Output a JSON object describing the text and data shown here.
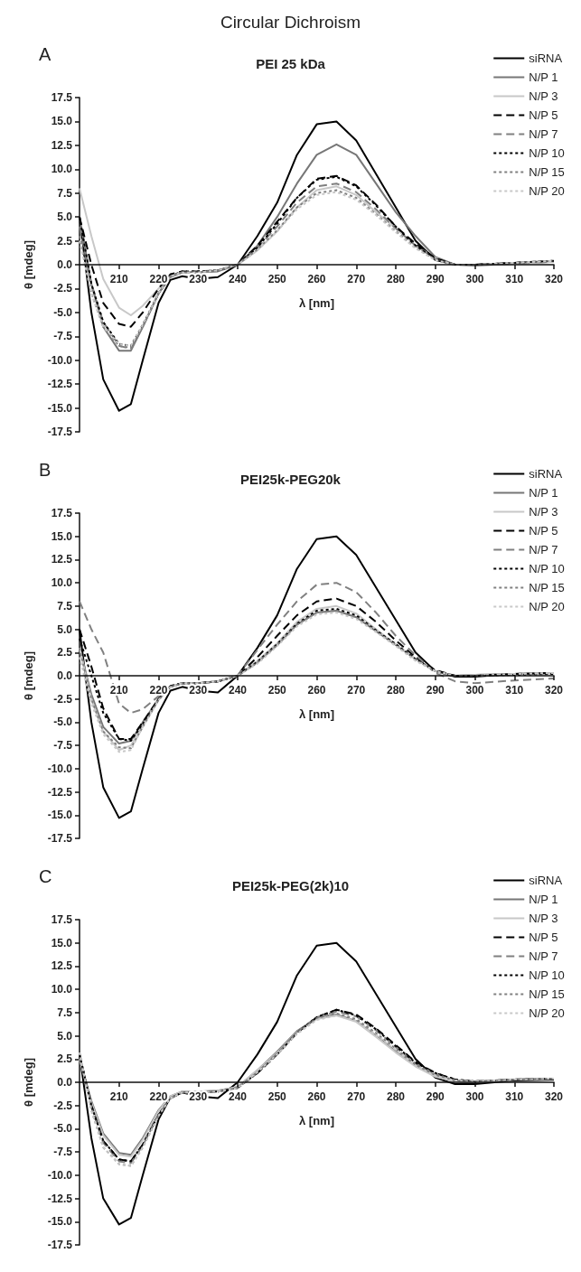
{
  "chart_data": [
    {
      "type": "line",
      "subtitle": "Circular Dichroism",
      "title": "PEI 25 kDa",
      "annotations": [
        "A"
      ],
      "xlabel": "λ [nm]",
      "ylabel": "θ [mdeg]",
      "legend": "top right",
      "grid": false,
      "xlim": [
        200,
        320
      ],
      "xticks": [
        210,
        220,
        230,
        240,
        250,
        260,
        270,
        280,
        290,
        300,
        310,
        320
      ],
      "ylim": [
        -17.5,
        17.5
      ],
      "yticks": [
        -17.5,
        {
          "value": -15,
          "label": "-15.0"
        },
        -12.5,
        {
          "value": -10,
          "label": "-10.0"
        },
        -7.5,
        {
          "value": -5,
          "label": "-5.0"
        },
        -2.5,
        {
          "value": 0,
          "label": "0.0"
        },
        2.5,
        {
          "value": 5,
          "label": "5.0"
        },
        7.5,
        {
          "value": 10,
          "label": "10.0"
        },
        12.5,
        {
          "value": 15,
          "label": "15.0"
        },
        17.5
      ],
      "x": [
        200,
        203,
        206,
        210,
        213,
        216,
        220,
        223,
        226,
        230,
        235,
        240,
        245,
        250,
        255,
        260,
        265,
        270,
        275,
        280,
        285,
        290,
        295,
        300,
        310,
        320
      ],
      "series": [
        {
          "name": "siRNA",
          "color": "#000000",
          "line_style": "solid",
          "values": [
            5,
            -5,
            -12,
            -15.3,
            -14.6,
            -10,
            -4,
            -1.6,
            -1.2,
            -1.5,
            -1.3,
            0,
            3,
            6.5,
            11.5,
            14.7,
            15,
            13,
            9.5,
            6,
            2.5,
            0.5,
            0,
            0,
            0.2,
            0.3
          ]
        },
        {
          "name": "N/P 1",
          "color": "#777777",
          "line_style": "solid",
          "values": [
            5,
            -2,
            -6.5,
            -9,
            -9,
            -6.5,
            -3,
            -1.3,
            -0.8,
            -0.8,
            -0.7,
            0,
            2,
            5,
            8.5,
            11.5,
            12.6,
            11.5,
            8.5,
            5.5,
            3,
            0.8,
            0,
            -0.1,
            0.1,
            0.3
          ]
        },
        {
          "name": "N/P 3",
          "color": "#c8c8c8",
          "line_style": "solid",
          "values": [
            8,
            3,
            -1.5,
            -4.5,
            -5.3,
            -4.3,
            -2.5,
            -1.2,
            -0.8,
            -0.8,
            -0.6,
            0,
            1.5,
            3.5,
            6,
            7.8,
            8.2,
            7.3,
            5.5,
            3.8,
            2,
            0.7,
            0,
            0,
            0.1,
            0.3
          ]
        },
        {
          "name": "N/P 5",
          "color": "#000000",
          "line_style": "dashed",
          "values": [
            5,
            0,
            -4,
            -6.2,
            -6.5,
            -5,
            -2.5,
            -1,
            -0.7,
            -0.7,
            -0.6,
            0,
            2,
            4.5,
            7,
            9,
            9.3,
            8.3,
            6.3,
            4,
            2.2,
            0.7,
            0,
            0,
            0.2,
            0.4
          ]
        },
        {
          "name": "N/P 7",
          "color": "#808080",
          "line_style": "dashed",
          "values": [
            4,
            -2,
            -6,
            -8.5,
            -8.8,
            -6.5,
            -3,
            -1.2,
            -0.8,
            -0.8,
            -0.6,
            0,
            1.8,
            4,
            6.5,
            8.2,
            8.5,
            7.6,
            5.8,
            3.8,
            2,
            0.6,
            0,
            0,
            0.2,
            0.4
          ]
        },
        {
          "name": "N/P 10",
          "color": "#000000",
          "line_style": "dotted",
          "values": [
            5,
            -2,
            -6,
            -8.3,
            -8.5,
            -6.3,
            -3,
            -1.2,
            -0.7,
            -0.7,
            -0.6,
            0,
            1.8,
            4.3,
            7,
            8.9,
            9.2,
            8.2,
            6.2,
            4,
            2,
            0.6,
            0,
            0,
            0.2,
            0.4
          ]
        },
        {
          "name": "N/P 15",
          "color": "#808080",
          "line_style": "dotted",
          "values": [
            3,
            -3,
            -6.5,
            -8.5,
            -8.7,
            -6.5,
            -3,
            -1.2,
            -0.8,
            -0.8,
            -0.6,
            0,
            1.6,
            3.6,
            6,
            7.5,
            7.8,
            7,
            5.3,
            3.5,
            1.8,
            0.5,
            0,
            0,
            0.2,
            0.4
          ]
        },
        {
          "name": "N/P 20",
          "color": "#c8c8c8",
          "line_style": "dotted",
          "values": [
            2.5,
            -3,
            -6.5,
            -8.3,
            -8.5,
            -6.3,
            -3,
            -1.2,
            -0.8,
            -0.8,
            -0.6,
            0,
            1.5,
            3.5,
            5.8,
            7.3,
            7.6,
            6.8,
            5.2,
            3.4,
            1.7,
            0.5,
            0,
            0,
            0.2,
            0.4
          ]
        }
      ]
    },
    {
      "type": "line",
      "title": "PEI25k-PEG20k",
      "annotations": [
        "B"
      ],
      "xlabel": "λ [nm]",
      "ylabel": "θ [mdeg]",
      "legend": "top right",
      "grid": false,
      "xlim": [
        200,
        320
      ],
      "xticks": [
        210,
        220,
        230,
        240,
        250,
        260,
        270,
        280,
        290,
        300,
        310,
        320
      ],
      "ylim": [
        -17.5,
        17.5
      ],
      "yticks": [
        -17.5,
        {
          "value": -15,
          "label": "-15.0"
        },
        -12.5,
        {
          "value": -10,
          "label": "-10.0"
        },
        -7.5,
        {
          "value": -5,
          "label": "-5.0"
        },
        -2.5,
        {
          "value": 0,
          "label": "0.0"
        },
        2.5,
        {
          "value": 5,
          "label": "5.0"
        },
        7.5,
        {
          "value": 10,
          "label": "10.0"
        },
        12.5,
        {
          "value": 15,
          "label": "15.0"
        },
        17.5
      ],
      "x": [
        200,
        203,
        206,
        210,
        213,
        216,
        220,
        223,
        226,
        230,
        235,
        240,
        245,
        250,
        255,
        260,
        265,
        270,
        275,
        280,
        285,
        290,
        295,
        300,
        310,
        320
      ],
      "series": [
        {
          "name": "siRNA",
          "color": "#000000",
          "line_style": "solid",
          "values": [
            5,
            -5,
            -12,
            -15.3,
            -14.6,
            -10,
            -4,
            -1.6,
            -1.2,
            -1.6,
            -1.8,
            0,
            3,
            6.5,
            11.5,
            14.7,
            15,
            13,
            9.5,
            6,
            2.5,
            0.5,
            -0.1,
            -0.1,
            0.2,
            0.3
          ]
        },
        {
          "name": "N/P 1",
          "color": "#777777",
          "line_style": "solid",
          "values": [
            3,
            -2,
            -5.5,
            -7.3,
            -7,
            -5,
            -2.5,
            -1.2,
            -0.8,
            -0.8,
            -0.6,
            0,
            1.5,
            3.3,
            5.5,
            6.8,
            7,
            6.3,
            4.8,
            3.3,
            1.8,
            0.5,
            0,
            0.1,
            0.2,
            0.3
          ]
        },
        {
          "name": "N/P 3",
          "color": "#c8c8c8",
          "line_style": "solid",
          "values": [
            3,
            -2.5,
            -6,
            -8,
            -7.5,
            -5.3,
            -2.5,
            -1.2,
            -0.8,
            -0.8,
            -0.6,
            0,
            1.6,
            3.5,
            5.8,
            7.2,
            7.5,
            6.7,
            5,
            3.4,
            1.8,
            0.5,
            0,
            0.1,
            0.2,
            0.3
          ]
        },
        {
          "name": "N/P 5",
          "color": "#000000",
          "line_style": "dashed",
          "values": [
            5,
            1,
            -3.5,
            -6.8,
            -6.8,
            -5,
            -2.5,
            -1.1,
            -0.8,
            -0.8,
            -0.6,
            0,
            2,
            4.3,
            6.5,
            8,
            8.3,
            7.5,
            5.8,
            3.8,
            2,
            0.6,
            0,
            0,
            0.2,
            0.3
          ]
        },
        {
          "name": "N/P 7",
          "color": "#808080",
          "line_style": "dashed",
          "values": [
            8,
            5,
            2.5,
            -3,
            -4,
            -3.6,
            -2.2,
            -1.2,
            -0.8,
            -0.8,
            -0.6,
            0,
            2.8,
            5.5,
            8,
            9.8,
            10,
            9,
            6.8,
            4.3,
            2.2,
            0.3,
            -0.6,
            -0.8,
            -0.5,
            -0.3
          ]
        },
        {
          "name": "N/P 10",
          "color": "#000000",
          "line_style": "dotted",
          "values": [
            4,
            0,
            -4,
            -6.8,
            -7,
            -5.2,
            -2.5,
            -1.1,
            -0.8,
            -0.8,
            -0.6,
            0,
            1.5,
            3.4,
            5.6,
            7,
            7.2,
            6.5,
            4.9,
            3.4,
            1.8,
            0.5,
            0,
            0,
            0.1,
            0.2
          ]
        },
        {
          "name": "N/P 15",
          "color": "#808080",
          "line_style": "dotted",
          "values": [
            3,
            -2.5,
            -6,
            -7.7,
            -7.8,
            -5.5,
            -2.6,
            -1.2,
            -0.8,
            -0.8,
            -0.6,
            0,
            1.4,
            3.3,
            5.5,
            6.8,
            7,
            6.3,
            4.8,
            3.3,
            1.7,
            0.5,
            0,
            0,
            0.2,
            0.3
          ]
        },
        {
          "name": "N/P 20",
          "color": "#c8c8c8",
          "line_style": "dotted",
          "values": [
            2,
            -3,
            -6.3,
            -8.2,
            -8,
            -5.5,
            -2.6,
            -1.2,
            -0.8,
            -0.8,
            -0.6,
            0,
            1.3,
            3.2,
            5.3,
            6.6,
            6.8,
            6.1,
            4.7,
            3.2,
            1.6,
            0.5,
            0,
            0,
            0.2,
            0.3
          ]
        }
      ]
    },
    {
      "type": "line",
      "title": "PEI25k-PEG(2k)10",
      "annotations": [
        "C"
      ],
      "xlabel": "λ [nm]",
      "ylabel": "θ [mdeg]",
      "legend": "top right",
      "grid": false,
      "xlim": [
        200,
        320
      ],
      "xticks": [
        210,
        220,
        230,
        240,
        250,
        260,
        270,
        280,
        290,
        300,
        310,
        320
      ],
      "ylim": [
        -17.5,
        17.5
      ],
      "yticks": [
        -17.5,
        {
          "value": -15,
          "label": "-15.0"
        },
        -12.5,
        {
          "value": -10,
          "label": "-10.0"
        },
        -7.5,
        {
          "value": -5,
          "label": "-5.0"
        },
        -2.5,
        {
          "value": 0,
          "label": "0.0"
        },
        2.5,
        {
          "value": 5,
          "label": "5.0"
        },
        7.5,
        {
          "value": 10,
          "label": "10.0"
        },
        12.5,
        {
          "value": 15,
          "label": "15.0"
        },
        17.5
      ],
      "x": [
        200,
        203,
        206,
        210,
        213,
        216,
        220,
        223,
        226,
        230,
        235,
        240,
        245,
        250,
        255,
        260,
        265,
        270,
        275,
        280,
        285,
        290,
        295,
        300,
        310,
        320
      ],
      "series": [
        {
          "name": "siRNA",
          "color": "#000000",
          "line_style": "solid",
          "values": [
            3,
            -6,
            -12.5,
            -15.3,
            -14.6,
            -10,
            -4,
            -1.6,
            -1.1,
            -1.5,
            -1.7,
            0,
            3,
            6.5,
            11.5,
            14.7,
            15,
            13,
            9.5,
            6,
            2.5,
            0.5,
            -0.2,
            -0.2,
            0.2,
            0.3
          ]
        },
        {
          "name": "N/P 1",
          "color": "#777777",
          "line_style": "solid",
          "values": [
            2.5,
            -2,
            -5.5,
            -7.6,
            -7.8,
            -6,
            -3,
            -1.5,
            -1,
            -1,
            -0.9,
            -0.5,
            1.3,
            3.3,
            5.5,
            6.9,
            7.3,
            6.6,
            5,
            3.3,
            1.8,
            0.7,
            0.1,
            0,
            0.3,
            0.4
          ]
        },
        {
          "name": "N/P 3",
          "color": "#c8c8c8",
          "line_style": "solid",
          "values": [
            2.5,
            -2.2,
            -5.7,
            -7.8,
            -8,
            -6.2,
            -3.1,
            -1.5,
            -1,
            -1,
            -0.9,
            -0.5,
            1.3,
            3.2,
            5.4,
            6.8,
            7.2,
            6.5,
            4.9,
            3.2,
            1.7,
            0.6,
            0.1,
            0,
            0.3,
            0.4
          ]
        },
        {
          "name": "N/P 5",
          "color": "#000000",
          "line_style": "dashed",
          "values": [
            3,
            -2.5,
            -6.3,
            -8.3,
            -8.5,
            -6.7,
            -3.5,
            -1.7,
            -1.1,
            -1.1,
            -1,
            -0.6,
            1,
            3,
            5.3,
            7,
            7.8,
            7.3,
            5.8,
            4,
            2.2,
            1,
            0.3,
            0.1,
            0.3,
            0.4
          ]
        },
        {
          "name": "N/P 7",
          "color": "#808080",
          "line_style": "dashed",
          "values": [
            3,
            -2.7,
            -6.5,
            -8.5,
            -8.7,
            -6.8,
            -3.5,
            -1.7,
            -1.1,
            -1.1,
            -1,
            -0.6,
            1.1,
            3.1,
            5.4,
            7,
            7.6,
            7.1,
            5.6,
            3.8,
            2,
            0.9,
            0.2,
            0.1,
            0.3,
            0.4
          ]
        },
        {
          "name": "N/P 10",
          "color": "#000000",
          "line_style": "dotted",
          "values": [
            3,
            -2.5,
            -6.3,
            -8.3,
            -8.5,
            -6.7,
            -3.5,
            -1.7,
            -1.1,
            -1.1,
            -1,
            -0.6,
            1,
            3,
            5.3,
            7,
            7.8,
            7.2,
            5.7,
            3.9,
            2.1,
            1,
            0.3,
            0.1,
            0.3,
            0.4
          ]
        },
        {
          "name": "N/P 15",
          "color": "#808080",
          "line_style": "dotted",
          "values": [
            3.2,
            -3,
            -7,
            -8.8,
            -9,
            -7,
            -3.6,
            -1.7,
            -1.1,
            -1.1,
            -1,
            -0.6,
            1.1,
            3.1,
            5.3,
            6.9,
            7.4,
            6.8,
            5.3,
            3.6,
            1.9,
            0.8,
            0.2,
            0.1,
            0.3,
            0.4
          ]
        },
        {
          "name": "N/P 20",
          "color": "#c8c8c8",
          "line_style": "dotted",
          "values": [
            3.2,
            -3,
            -7,
            -8.8,
            -9,
            -7,
            -3.6,
            -1.7,
            -1.1,
            -1.1,
            -1,
            -0.6,
            1.1,
            3,
            5.2,
            6.7,
            7.2,
            6.6,
            5.1,
            3.5,
            1.8,
            0.7,
            0.2,
            0.1,
            0.3,
            0.4
          ]
        }
      ]
    }
  ]
}
